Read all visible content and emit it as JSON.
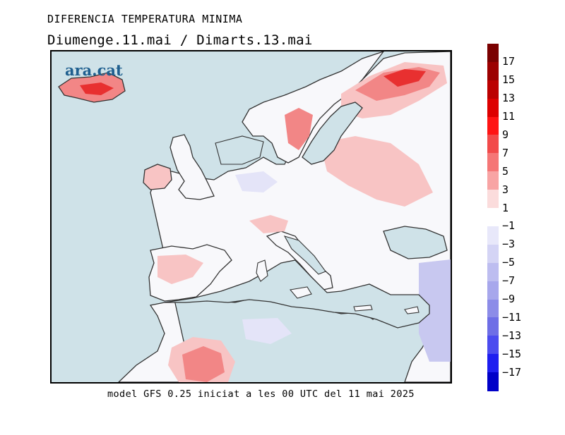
{
  "title": "DIFERENCIA TEMPERATURA MINIMA",
  "subtitle": "Diumenge.11.mai  /  Dimarts.13.mai",
  "logo": "ara.cat",
  "footer": "model GFS 0.25 iniciat a les 00 UTC del 11 mai 2025",
  "legend": {
    "labels": [
      "17",
      "15",
      "13",
      "11",
      "9",
      "7",
      "5",
      "3",
      "1",
      "−1",
      "−3",
      "−5",
      "−7",
      "−9",
      "−11",
      "−13",
      "−15",
      "−17"
    ],
    "colors": [
      "#7a0000",
      "#9c0000",
      "#bb0000",
      "#dd0000",
      "#ff1414",
      "#f24a4a",
      "#f57676",
      "#f8a4a4",
      "#fbdcdc",
      "#ffffff",
      "#e8e8fa",
      "#d4d4f5",
      "#bdbdf0",
      "#a7a7ec",
      "#8c8ce8",
      "#6e6ee6",
      "#4b4bef",
      "#1e1ef0",
      "#0000c8"
    ]
  },
  "map_colors": {
    "sea": "#cfe2e8",
    "land_neutral": "#f8f8fb",
    "warm_light": "#f8c4c4",
    "warm_mid": "#f28686",
    "warm_strong": "#e83030",
    "cool_light": "#e4e4f8",
    "cool_mid": "#c8c8f0"
  }
}
